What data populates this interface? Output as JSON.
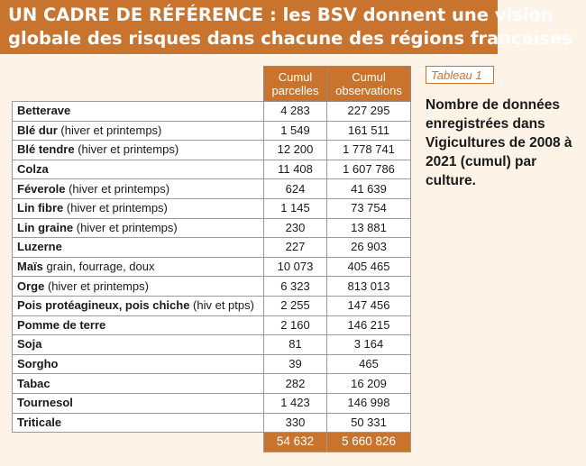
{
  "banner": {
    "line1": "UN CADRE DE RÉFÉRENCE : les BSV donnent une vision",
    "line2": "globale des risques dans chacune des régions françaises"
  },
  "table_tag": "Tableau 1",
  "caption": "Nombre de données enregistrées dans Vigicultures de 2008 à 2021 (cumul) par culture.",
  "table": {
    "headers": {
      "parcelles": "Cumul parcelles",
      "observations": "Cumul observations"
    },
    "rows": [
      {
        "crop": "Betterave",
        "detail": "",
        "parcelles": "4 283",
        "observations": "227 295"
      },
      {
        "crop": "Blé dur",
        "detail": " (hiver et printemps)",
        "parcelles": "1 549",
        "observations": "161 511"
      },
      {
        "crop": "Blé tendre",
        "detail": " (hiver et printemps)",
        "parcelles": "12 200",
        "observations": "1 778 741"
      },
      {
        "crop": "Colza",
        "detail": "",
        "parcelles": "11 408",
        "observations": "1 607 786"
      },
      {
        "crop": "Féverole",
        "detail": " (hiver et printemps)",
        "parcelles": "624",
        "observations": "41 639"
      },
      {
        "crop": "Lin fibre",
        "detail": " (hiver et printemps)",
        "parcelles": "1 145",
        "observations": "73 754"
      },
      {
        "crop": "Lin graine",
        "detail": " (hiver et printemps)",
        "parcelles": "230",
        "observations": "13 881"
      },
      {
        "crop": "Luzerne",
        "detail": "",
        "parcelles": "227",
        "observations": "26 903"
      },
      {
        "crop": "Maïs",
        "detail": " grain, fourrage, doux",
        "parcelles": "10 073",
        "observations": "405 465"
      },
      {
        "crop": "Orge",
        "detail": " (hiver et printemps)",
        "parcelles": "6 323",
        "observations": "813 013"
      },
      {
        "crop": "Pois protéagineux, pois chiche",
        "detail": " (hiv et ptps)",
        "parcelles": "2 255",
        "observations": "147 456"
      },
      {
        "crop": "Pomme de terre",
        "detail": "",
        "parcelles": "2 160",
        "observations": "146 215"
      },
      {
        "crop": "Soja",
        "detail": "",
        "parcelles": "81",
        "observations": "3 164"
      },
      {
        "crop": "Sorgho",
        "detail": "",
        "parcelles": "39",
        "observations": "465"
      },
      {
        "crop": "Tabac",
        "detail": "",
        "parcelles": "282",
        "observations": "16 209"
      },
      {
        "crop": "Tournesol",
        "detail": "",
        "parcelles": "1 423",
        "observations": "146 998"
      },
      {
        "crop": "Triticale",
        "detail": "",
        "parcelles": "330",
        "observations": "50 331"
      }
    ],
    "total": {
      "parcelles": "54 632",
      "observations": "5 660 826"
    }
  },
  "colors": {
    "accent": "#c8742f",
    "background": "#fdf3e6"
  }
}
